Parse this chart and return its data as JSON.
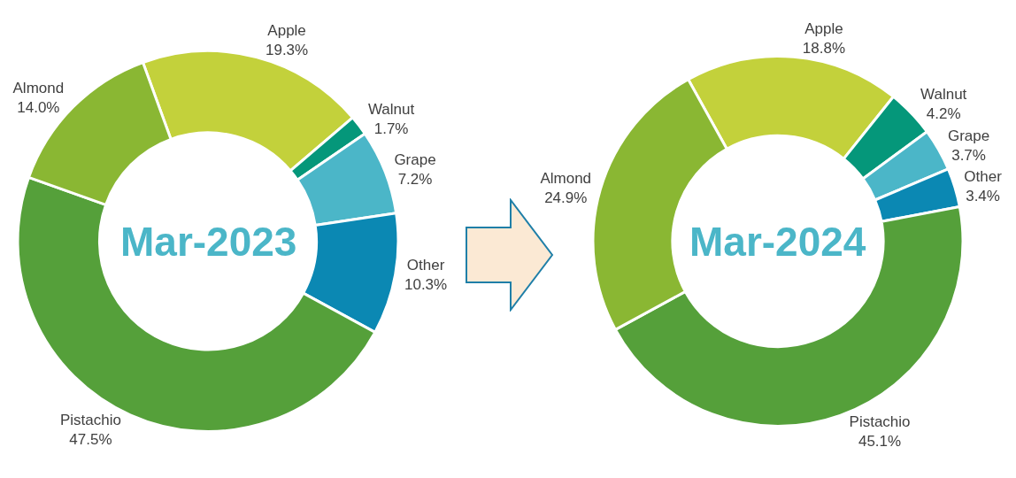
{
  "chart_data": [
    {
      "type": "donut",
      "title": "Mar-2023",
      "categories": [
        "Apple",
        "Walnut",
        "Grape",
        "Other",
        "Pistachio",
        "Almond"
      ],
      "values": [
        19.3,
        1.7,
        7.2,
        10.3,
        47.5,
        14.0
      ],
      "value_labels": [
        "19.3%",
        "1.7%",
        "7.2%",
        "10.3%",
        "47.5%",
        "14.0%"
      ],
      "colors": [
        "#c3d13b",
        "#05977a",
        "#4bb6c8",
        "#0b88b3",
        "#55a03a",
        "#8ab733"
      ],
      "legend": false
    },
    {
      "type": "donut",
      "title": "Mar-2024",
      "categories": [
        "Apple",
        "Walnut",
        "Grape",
        "Other",
        "Pistachio",
        "Almond"
      ],
      "values": [
        18.8,
        4.2,
        3.7,
        3.4,
        45.1,
        24.9
      ],
      "value_labels": [
        "18.8%",
        "4.2%",
        "3.7%",
        "3.4%",
        "45.1%",
        "24.9%"
      ],
      "colors": [
        "#c3d13b",
        "#05977a",
        "#4bb6c8",
        "#0b88b3",
        "#55a03a",
        "#8ab733"
      ],
      "legend": false
    }
  ]
}
